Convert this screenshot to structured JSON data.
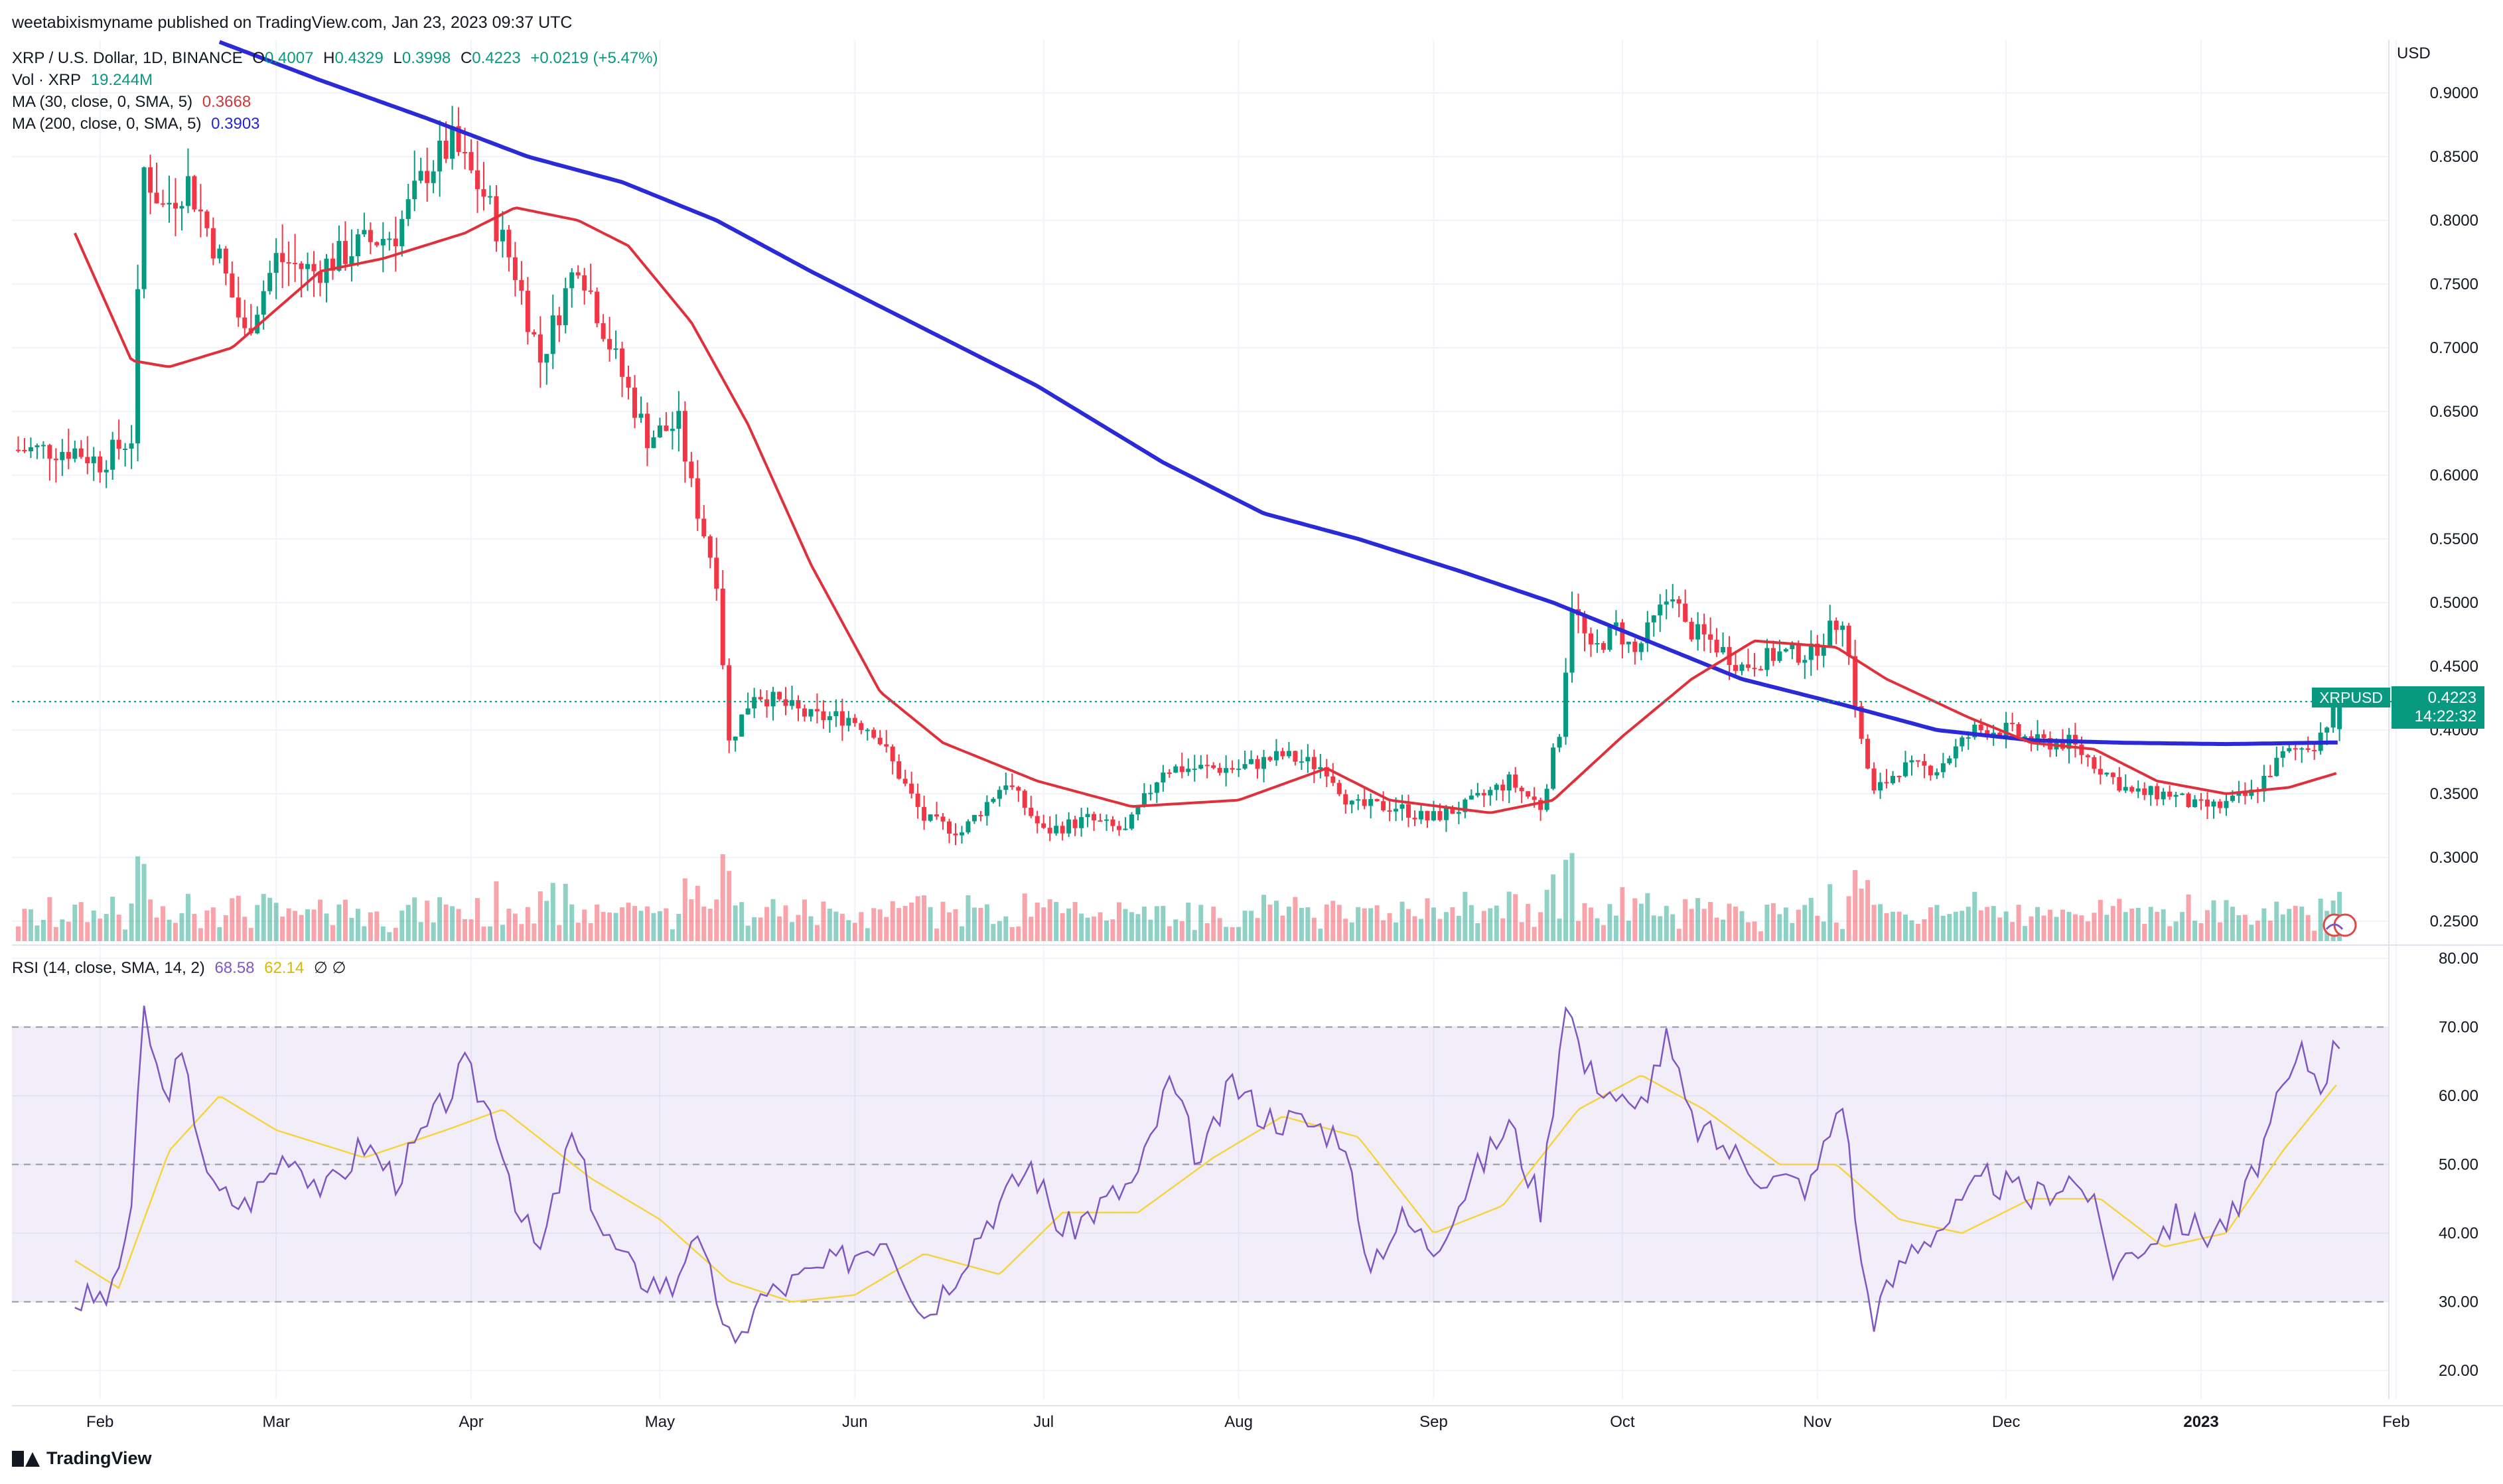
{
  "header": {
    "publisher": "weetabixismyname published on TradingView.com, Jan 23, 2023 09:37 UTC",
    "symbol_line": "XRP / U.S. Dollar, 1D, BINANCE",
    "ohlc": {
      "o_label": "O",
      "o": "0.4007",
      "h_label": "H",
      "h": "0.4329",
      "l_label": "L",
      "l": "0.3998",
      "c_label": "C",
      "c": "0.4223",
      "change": "+0.0219 (+5.47%)"
    },
    "vol": {
      "label": "Vol · XRP",
      "value": "19.244M"
    },
    "ma30": {
      "label": "MA (30, close, 0, SMA, 5)",
      "value": "0.3668"
    },
    "ma200": {
      "label": "MA (200, close, 0, SMA, 5)",
      "value": "0.3903"
    },
    "rsi": {
      "label": "RSI (14, close, SMA, 14, 2)",
      "value": "68.58",
      "ma_value": "62.14",
      "icons": "∅ ∅"
    }
  },
  "price_axis": {
    "unit": "USD",
    "ticks": [
      "0.9000",
      "0.8500",
      "0.8000",
      "0.7500",
      "0.7000",
      "0.6500",
      "0.6000",
      "0.5500",
      "0.5000",
      "0.4500",
      "0.4000",
      "0.3500",
      "0.3000",
      "0.2500"
    ]
  },
  "rsi_axis": {
    "ticks": [
      "80.00",
      "70.00",
      "60.00",
      "50.00",
      "40.00",
      "30.00",
      "20.00"
    ]
  },
  "time_axis": {
    "ticks": [
      "Feb",
      "Mar",
      "Apr",
      "May",
      "Jun",
      "Jul",
      "Aug",
      "Sep",
      "Oct",
      "Nov",
      "Dec",
      "2023",
      "Feb"
    ]
  },
  "last_price": {
    "symbol": "XRPUSD",
    "price": "0.4223",
    "countdown": "14:22:32"
  },
  "brand": "TradingView",
  "colors": {
    "up": "#089981",
    "down": "#f23645",
    "ma30": "#e0303c",
    "ma200": "#2a2ad6",
    "rsi": "#7e57c2",
    "rsi_ma": "#f5d442",
    "rsi_band": "#7e57c2"
  },
  "chart_data": {
    "type": "candlestick",
    "title": "XRP / U.S. Dollar, 1D, BINANCE",
    "x_range": [
      "2023-01-23 back to 2022-01-28",
      "Jan 23"
    ],
    "ylim": [
      0.23,
      0.93
    ],
    "rsi_ylim": [
      15,
      82
    ],
    "close_anchors": [
      [
        "2022-01-28",
        0.62
      ],
      [
        "2022-02-01",
        0.61
      ],
      [
        "2022-02-06",
        0.63
      ],
      [
        "2022-02-08",
        0.84
      ],
      [
        "2022-02-11",
        0.81
      ],
      [
        "2022-02-15",
        0.83
      ],
      [
        "2022-02-20",
        0.77
      ],
      [
        "2022-02-24",
        0.71
      ],
      [
        "2022-03-01",
        0.77
      ],
      [
        "2022-03-07",
        0.76
      ],
      [
        "2022-03-14",
        0.78
      ],
      [
        "2022-03-20",
        0.79
      ],
      [
        "2022-03-25",
        0.84
      ],
      [
        "2022-03-29",
        0.86
      ],
      [
        "2022-04-03",
        0.82
      ],
      [
        "2022-04-08",
        0.76
      ],
      [
        "2022-04-12",
        0.69
      ],
      [
        "2022-04-18",
        0.77
      ],
      [
        "2022-04-24",
        0.69
      ],
      [
        "2022-04-29",
        0.63
      ],
      [
        "2022-05-04",
        0.64
      ],
      [
        "2022-05-06",
        0.59
      ],
      [
        "2022-05-10",
        0.52
      ],
      [
        "2022-05-12",
        0.39
      ],
      [
        "2022-05-16",
        0.43
      ],
      [
        "2022-05-25",
        0.41
      ],
      [
        "2022-05-31",
        0.41
      ],
      [
        "2022-06-04",
        0.4
      ],
      [
        "2022-06-12",
        0.33
      ],
      [
        "2022-06-18",
        0.32
      ],
      [
        "2022-06-25",
        0.36
      ],
      [
        "2022-07-01",
        0.32
      ],
      [
        "2022-07-08",
        0.33
      ],
      [
        "2022-07-14",
        0.32
      ],
      [
        "2022-07-20",
        0.37
      ],
      [
        "2022-07-28",
        0.37
      ],
      [
        "2022-08-01",
        0.37
      ],
      [
        "2022-08-08",
        0.38
      ],
      [
        "2022-08-15",
        0.37
      ],
      [
        "2022-08-19",
        0.34
      ],
      [
        "2022-08-26",
        0.34
      ],
      [
        "2022-08-31",
        0.33
      ],
      [
        "2022-09-06",
        0.34
      ],
      [
        "2022-09-13",
        0.36
      ],
      [
        "2022-09-18",
        0.34
      ],
      [
        "2022-09-21",
        0.4
      ],
      [
        "2022-09-23",
        0.5
      ],
      [
        "2022-09-26",
        0.46
      ],
      [
        "2022-09-30",
        0.48
      ],
      [
        "2022-10-03",
        0.46
      ],
      [
        "2022-10-09",
        0.51
      ],
      [
        "2022-10-11",
        0.48
      ],
      [
        "2022-10-15",
        0.47
      ],
      [
        "2022-10-20",
        0.45
      ],
      [
        "2022-10-26",
        0.46
      ],
      [
        "2022-10-31",
        0.46
      ],
      [
        "2022-11-05",
        0.49
      ],
      [
        "2022-11-08",
        0.39
      ],
      [
        "2022-11-10",
        0.35
      ],
      [
        "2022-11-14",
        0.37
      ],
      [
        "2022-11-20",
        0.37
      ],
      [
        "2022-11-26",
        0.4
      ],
      [
        "2022-12-01",
        0.4
      ],
      [
        "2022-12-06",
        0.39
      ],
      [
        "2022-12-11",
        0.39
      ],
      [
        "2022-12-16",
        0.37
      ],
      [
        "2022-12-21",
        0.35
      ],
      [
        "2022-12-27",
        0.35
      ],
      [
        "2022-12-31",
        0.34
      ],
      [
        "2023-01-04",
        0.34
      ],
      [
        "2023-01-09",
        0.35
      ],
      [
        "2023-01-14",
        0.38
      ],
      [
        "2023-01-19",
        0.39
      ],
      [
        "2023-01-23",
        0.4223
      ]
    ],
    "ma30_anchors": [
      [
        "2022-01-28",
        0.79
      ],
      [
        "2022-02-06",
        0.69
      ],
      [
        "2022-02-12",
        0.685
      ],
      [
        "2022-02-22",
        0.7
      ],
      [
        "2022-03-08",
        0.76
      ],
      [
        "2022-03-18",
        0.77
      ],
      [
        "2022-03-31",
        0.79
      ],
      [
        "2022-04-08",
        0.81
      ],
      [
        "2022-04-18",
        0.8
      ],
      [
        "2022-04-26",
        0.78
      ],
      [
        "2022-05-06",
        0.72
      ],
      [
        "2022-05-15",
        0.64
      ],
      [
        "2022-05-25",
        0.53
      ],
      [
        "2022-06-05",
        0.43
      ],
      [
        "2022-06-15",
        0.39
      ],
      [
        "2022-06-30",
        0.36
      ],
      [
        "2022-07-15",
        0.34
      ],
      [
        "2022-08-01",
        0.345
      ],
      [
        "2022-08-15",
        0.37
      ],
      [
        "2022-08-25",
        0.345
      ],
      [
        "2022-09-10",
        0.335
      ],
      [
        "2022-09-20",
        0.345
      ],
      [
        "2022-10-01",
        0.395
      ],
      [
        "2022-10-12",
        0.44
      ],
      [
        "2022-10-22",
        0.47
      ],
      [
        "2022-11-04",
        0.465
      ],
      [
        "2022-11-12",
        0.44
      ],
      [
        "2022-11-25",
        0.41
      ],
      [
        "2022-12-05",
        0.39
      ],
      [
        "2022-12-15",
        0.385
      ],
      [
        "2022-12-25",
        0.36
      ],
      [
        "2023-01-05",
        0.35
      ],
      [
        "2023-01-15",
        0.355
      ],
      [
        "2023-01-23",
        0.3668
      ]
    ],
    "ma200_anchors": [
      [
        "2022-02-20",
        0.94
      ],
      [
        "2022-03-08",
        0.91
      ],
      [
        "2022-03-25",
        0.88
      ],
      [
        "2022-04-10",
        0.85
      ],
      [
        "2022-04-25",
        0.83
      ],
      [
        "2022-05-10",
        0.8
      ],
      [
        "2022-05-25",
        0.76
      ],
      [
        "2022-06-10",
        0.72
      ],
      [
        "2022-06-30",
        0.67
      ],
      [
        "2022-07-20",
        0.61
      ],
      [
        "2022-08-05",
        0.57
      ],
      [
        "2022-08-20",
        0.55
      ],
      [
        "2022-09-05",
        0.525
      ],
      [
        "2022-09-20",
        0.5
      ],
      [
        "2022-10-05",
        0.47
      ],
      [
        "2022-10-20",
        0.44
      ],
      [
        "2022-11-05",
        0.42
      ],
      [
        "2022-11-20",
        0.4
      ],
      [
        "2022-12-05",
        0.392
      ],
      [
        "2022-12-20",
        0.39
      ],
      [
        "2023-01-05",
        0.389
      ],
      [
        "2023-01-23",
        0.3903
      ]
    ],
    "rsi_anchors": [
      [
        "2022-01-28",
        30
      ],
      [
        "2022-02-03",
        31
      ],
      [
        "2022-02-06",
        44
      ],
      [
        "2022-02-08",
        72
      ],
      [
        "2022-02-11",
        60
      ],
      [
        "2022-02-14",
        65
      ],
      [
        "2022-02-19",
        46
      ],
      [
        "2022-02-24",
        44
      ],
      [
        "2022-03-03",
        52
      ],
      [
        "2022-03-09",
        46
      ],
      [
        "2022-03-15",
        53
      ],
      [
        "2022-03-20",
        48
      ],
      [
        "2022-03-27",
        58
      ],
      [
        "2022-03-31",
        64
      ],
      [
        "2022-04-05",
        56
      ],
      [
        "2022-04-09",
        42
      ],
      [
        "2022-04-12",
        37
      ],
      [
        "2022-04-17",
        54
      ],
      [
        "2022-04-22",
        40
      ],
      [
        "2022-04-27",
        34
      ],
      [
        "2022-05-03",
        32
      ],
      [
        "2022-05-06",
        40
      ],
      [
        "2022-05-10",
        31
      ],
      [
        "2022-05-13",
        22
      ],
      [
        "2022-05-16",
        30
      ],
      [
        "2022-05-25",
        34
      ],
      [
        "2022-05-30",
        36
      ],
      [
        "2022-06-06",
        40
      ],
      [
        "2022-06-12",
        28
      ],
      [
        "2022-06-16",
        33
      ],
      [
        "2022-06-22",
        42
      ],
      [
        "2022-06-29",
        50
      ],
      [
        "2022-07-04",
        40
      ],
      [
        "2022-07-10",
        44
      ],
      [
        "2022-07-16",
        48
      ],
      [
        "2022-07-21",
        62
      ],
      [
        "2022-07-26",
        50
      ],
      [
        "2022-07-31",
        62
      ],
      [
        "2022-08-05",
        57
      ],
      [
        "2022-08-12",
        56
      ],
      [
        "2022-08-18",
        54
      ],
      [
        "2022-08-21",
        35
      ],
      [
        "2022-08-27",
        42
      ],
      [
        "2022-09-01",
        38
      ],
      [
        "2022-09-07",
        48
      ],
      [
        "2022-09-13",
        56
      ],
      [
        "2022-09-18",
        44
      ],
      [
        "2022-09-22",
        75
      ],
      [
        "2022-09-25",
        64
      ],
      [
        "2022-09-30",
        60
      ],
      [
        "2022-10-03",
        57
      ],
      [
        "2022-10-08",
        68
      ],
      [
        "2022-10-12",
        56
      ],
      [
        "2022-10-18",
        52
      ],
      [
        "2022-10-24",
        48
      ],
      [
        "2022-10-31",
        47
      ],
      [
        "2022-11-05",
        60
      ],
      [
        "2022-11-08",
        35
      ],
      [
        "2022-11-10",
        28
      ],
      [
        "2022-11-16",
        38
      ],
      [
        "2022-11-22",
        42
      ],
      [
        "2022-11-28",
        48
      ],
      [
        "2022-12-05",
        45
      ],
      [
        "2022-12-11",
        48
      ],
      [
        "2022-12-14",
        46
      ],
      [
        "2022-12-18",
        35
      ],
      [
        "2022-12-22",
        38
      ],
      [
        "2022-12-28",
        42
      ],
      [
        "2023-01-02",
        40
      ],
      [
        "2023-01-07",
        43
      ],
      [
        "2023-01-13",
        58
      ],
      [
        "2023-01-17",
        66
      ],
      [
        "2023-01-20",
        62
      ],
      [
        "2023-01-23",
        68.58
      ]
    ],
    "rsi_ma_anchors": [
      [
        "2022-01-28",
        36
      ],
      [
        "2022-02-04",
        32
      ],
      [
        "2022-02-12",
        52
      ],
      [
        "2022-02-20",
        60
      ],
      [
        "2022-03-01",
        55
      ],
      [
        "2022-03-15",
        51
      ],
      [
        "2022-03-28",
        55
      ],
      [
        "2022-04-06",
        58
      ],
      [
        "2022-04-20",
        48
      ],
      [
        "2022-05-01",
        42
      ],
      [
        "2022-05-12",
        33
      ],
      [
        "2022-05-22",
        30
      ],
      [
        "2022-06-01",
        31
      ],
      [
        "2022-06-12",
        37
      ],
      [
        "2022-06-24",
        34
      ],
      [
        "2022-07-04",
        43
      ],
      [
        "2022-07-16",
        43
      ],
      [
        "2022-07-28",
        51
      ],
      [
        "2022-08-08",
        57
      ],
      [
        "2022-08-20",
        54
      ],
      [
        "2022-09-01",
        40
      ],
      [
        "2022-09-12",
        44
      ],
      [
        "2022-09-24",
        58
      ],
      [
        "2022-10-04",
        63
      ],
      [
        "2022-10-14",
        58
      ],
      [
        "2022-10-26",
        50
      ],
      [
        "2022-11-04",
        50
      ],
      [
        "2022-11-14",
        42
      ],
      [
        "2022-11-24",
        40
      ],
      [
        "2022-12-05",
        45
      ],
      [
        "2022-12-16",
        45
      ],
      [
        "2022-12-26",
        38
      ],
      [
        "2023-01-05",
        40
      ],
      [
        "2023-01-14",
        52
      ],
      [
        "2023-01-23",
        62.14
      ]
    ]
  }
}
